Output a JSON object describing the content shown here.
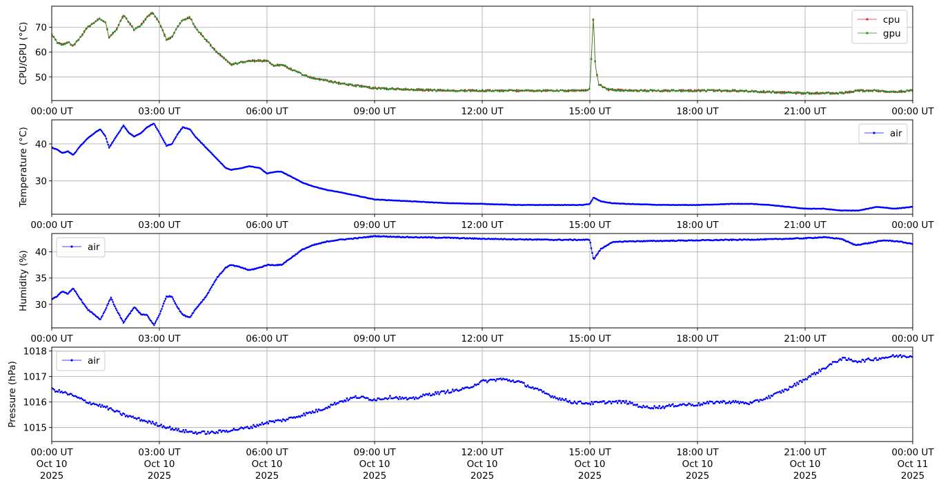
{
  "chart_data": [
    {
      "type": "line",
      "ylabel": "CPU/GPU (°C)",
      "ylim": [
        40.5,
        78.5
      ],
      "yticks": [
        50,
        60,
        70
      ],
      "xlim": [
        "2025-10-10 00:00",
        "2025-10-11 00:00"
      ],
      "x_tick_labels": [
        "00:00 UT",
        "03:00 UT",
        "06:00 UT",
        "09:00 UT",
        "12:00 UT",
        "15:00 UT",
        "18:00 UT",
        "21:00 UT",
        "00:00 UT"
      ],
      "grid": true,
      "legend_position": "top-right",
      "x_hours": [
        0,
        0.15,
        0.3,
        0.45,
        0.6,
        0.8,
        1.0,
        1.2,
        1.3,
        1.5,
        1.6,
        1.8,
        2.0,
        2.15,
        2.3,
        2.5,
        2.65,
        2.8,
        3.0,
        3.2,
        3.35,
        3.5,
        3.65,
        3.85,
        4.0,
        4.3,
        4.6,
        4.85,
        5.0,
        5.3,
        5.6,
        6.0,
        6.2,
        6.4,
        6.7,
        7.0,
        7.3,
        7.7,
        8.0,
        8.5,
        9.0,
        10.0,
        11.0,
        12.0,
        13.0,
        14.0,
        14.8,
        15.0,
        15.05,
        15.1,
        15.15,
        15.25,
        15.5,
        16.0,
        17.0,
        18.0,
        19.0,
        20.0,
        21.0,
        22.0,
        22.5,
        23.0,
        23.5,
        24.0
      ],
      "series": [
        {
          "name": "cpu",
          "color": "#d62728",
          "values": [
            67,
            64,
            63,
            64,
            62.5,
            66,
            70,
            72,
            73.5,
            72,
            66,
            69,
            75,
            72,
            69,
            71,
            74,
            76,
            72,
            65,
            66,
            70,
            73,
            74,
            70,
            65,
            60,
            57,
            55,
            56,
            56.5,
            56.5,
            54.5,
            55,
            53,
            51,
            49.5,
            48.5,
            47.5,
            46.5,
            45.5,
            45,
            44.5,
            44.5,
            44.5,
            44.5,
            44.5,
            45,
            60,
            75,
            55,
            47,
            45,
            44.5,
            44.5,
            44.5,
            44.5,
            44,
            43.5,
            43.5,
            44.5,
            44.5,
            44,
            44.5
          ]
        },
        {
          "name": "gpu",
          "color": "#228b22",
          "values": [
            67,
            64,
            63,
            64,
            62.5,
            66,
            70,
            72,
            73.5,
            72,
            66,
            69,
            75,
            72,
            69,
            71,
            74,
            76,
            72,
            65,
            66,
            70,
            73,
            74,
            70,
            65,
            60,
            57,
            55,
            56,
            56.5,
            56.5,
            54.5,
            55,
            53,
            51,
            49.5,
            48.5,
            47.5,
            46.5,
            45.5,
            45,
            44.5,
            44.5,
            44.5,
            44.5,
            44.5,
            45,
            60,
            75,
            55,
            47,
            45,
            44.5,
            44.5,
            44.5,
            44.5,
            44,
            43.5,
            43.5,
            44.5,
            44.5,
            44,
            44.5
          ]
        }
      ]
    },
    {
      "type": "line",
      "ylabel": "Temperature (°C)",
      "ylim": [
        21,
        46.5
      ],
      "yticks": [
        30,
        40
      ],
      "xlim": [
        "2025-10-10 00:00",
        "2025-10-11 00:00"
      ],
      "x_tick_labels": [
        "00:00 UT",
        "03:00 UT",
        "06:00 UT",
        "09:00 UT",
        "12:00 UT",
        "15:00 UT",
        "18:00 UT",
        "21:00 UT",
        "00:00 UT"
      ],
      "grid": true,
      "legend_position": "top-right",
      "x_hours": [
        0,
        0.15,
        0.3,
        0.45,
        0.6,
        0.8,
        1.0,
        1.2,
        1.35,
        1.5,
        1.6,
        1.8,
        2.0,
        2.15,
        2.3,
        2.5,
        2.65,
        2.85,
        3.0,
        3.2,
        3.35,
        3.5,
        3.65,
        3.85,
        4.0,
        4.3,
        4.6,
        4.85,
        5.0,
        5.3,
        5.5,
        5.8,
        6.0,
        6.25,
        6.4,
        6.7,
        7.0,
        7.3,
        7.7,
        8.0,
        8.5,
        9.0,
        10.0,
        11.0,
        12.0,
        13.0,
        14.0,
        14.8,
        15.0,
        15.1,
        15.3,
        15.6,
        16.0,
        17.0,
        18.0,
        19.0,
        19.5,
        20.0,
        21.0,
        21.5,
        22.0,
        22.5,
        23.0,
        23.5,
        24.0
      ],
      "series": [
        {
          "name": "air",
          "color": "#0000ff",
          "values": [
            39,
            38.5,
            37.5,
            38,
            37,
            39.5,
            41.5,
            43,
            44,
            42,
            39,
            42,
            45,
            43,
            42,
            43,
            44.5,
            45.5,
            43,
            39.5,
            40,
            42.5,
            44.5,
            44,
            42,
            39,
            36,
            33.5,
            33,
            33.5,
            34,
            33.5,
            32,
            32.5,
            32.5,
            31,
            29.5,
            28.5,
            27.5,
            27,
            26,
            25,
            24.5,
            24,
            23.8,
            23.5,
            23.5,
            23.5,
            23.8,
            25.5,
            24.5,
            24,
            23.8,
            23.5,
            23.5,
            23.8,
            23.8,
            23.5,
            22.5,
            22.5,
            22,
            22,
            23,
            22.5,
            23
          ]
        }
      ]
    },
    {
      "type": "line",
      "ylabel": "Humidity (%)",
      "ylim": [
        25.5,
        43.5
      ],
      "yticks": [
        30,
        35,
        40
      ],
      "xlim": [
        "2025-10-10 00:00",
        "2025-10-11 00:00"
      ],
      "x_tick_labels": [
        "00:00 UT",
        "03:00 UT",
        "06:00 UT",
        "09:00 UT",
        "12:00 UT",
        "15:00 UT",
        "18:00 UT",
        "21:00 UT",
        "00:00 UT"
      ],
      "grid": true,
      "legend_position": "top-left",
      "x_hours": [
        0,
        0.15,
        0.3,
        0.45,
        0.6,
        0.8,
        1.0,
        1.2,
        1.35,
        1.5,
        1.65,
        1.8,
        2.0,
        2.15,
        2.3,
        2.5,
        2.65,
        2.85,
        3.0,
        3.2,
        3.35,
        3.5,
        3.65,
        3.85,
        4.0,
        4.3,
        4.6,
        4.85,
        5.0,
        5.3,
        5.5,
        5.8,
        6.0,
        6.25,
        6.4,
        6.7,
        7.0,
        7.3,
        7.7,
        8.0,
        8.5,
        9.0,
        10.0,
        11.0,
        12.0,
        13.0,
        14.0,
        14.8,
        15.0,
        15.1,
        15.3,
        15.6,
        16.0,
        17.0,
        18.0,
        19.0,
        20.0,
        21.0,
        21.5,
        22.0,
        22.4,
        22.8,
        23.2,
        23.6,
        24.0
      ],
      "series": [
        {
          "name": "air",
          "color": "#0000ff",
          "values": [
            31,
            31.5,
            32.5,
            32,
            33,
            31,
            29,
            28,
            27,
            29,
            31.3,
            29,
            26.5,
            28,
            29.5,
            28,
            28,
            26,
            28,
            31.5,
            31.5,
            29.5,
            28,
            27.5,
            29,
            31.5,
            35,
            37,
            37.5,
            37,
            36.5,
            37,
            37.5,
            37.5,
            37.5,
            39,
            40.5,
            41.3,
            42,
            42.3,
            42.6,
            43,
            42.8,
            42.7,
            42.5,
            42.4,
            42.3,
            42.3,
            42.3,
            38.5,
            40.5,
            41.8,
            42,
            42.1,
            42.2,
            42.3,
            42.4,
            42.6,
            42.8,
            42.5,
            41.3,
            41.7,
            42.2,
            42,
            41.5
          ]
        }
      ]
    },
    {
      "type": "scatter",
      "ylabel": "Pressure (hPa)",
      "ylim": [
        1014.45,
        1018.15
      ],
      "yticks": [
        1015,
        1016,
        1017,
        1018
      ],
      "xlim": [
        "2025-10-10 00:00",
        "2025-10-11 00:00"
      ],
      "x_tick_labels": [
        [
          "00:00 UT",
          "Oct 10",
          "2025"
        ],
        [
          "03:00 UT",
          "Oct 10",
          "2025"
        ],
        [
          "06:00 UT",
          "Oct 10",
          "2025"
        ],
        [
          "09:00 UT",
          "Oct 10",
          "2025"
        ],
        [
          "12:00 UT",
          "Oct 10",
          "2025"
        ],
        [
          "15:00 UT",
          "Oct 10",
          "2025"
        ],
        [
          "18:00 UT",
          "Oct 10",
          "2025"
        ],
        [
          "21:00 UT",
          "Oct 10",
          "2025"
        ],
        [
          "00:00 UT",
          "Oct 11",
          "2025"
        ]
      ],
      "grid": true,
      "legend_position": "top-left",
      "x_hours": [
        0,
        0.5,
        1.0,
        1.5,
        2.0,
        2.5,
        3.0,
        3.5,
        4.0,
        4.5,
        5.0,
        5.5,
        6.0,
        6.5,
        7.0,
        7.5,
        8.0,
        8.5,
        9.0,
        9.5,
        10.0,
        10.5,
        11.0,
        11.5,
        12.0,
        12.5,
        13.0,
        13.5,
        14.0,
        14.5,
        15.0,
        15.5,
        16.0,
        16.5,
        17.0,
        17.5,
        18.0,
        18.5,
        19.0,
        19.5,
        20.0,
        20.5,
        21.0,
        21.5,
        22.0,
        22.5,
        23.0,
        23.5,
        24.0
      ],
      "series": [
        {
          "name": "air",
          "color": "#0000ff",
          "values": [
            1016.5,
            1016.3,
            1016,
            1015.8,
            1015.5,
            1015.3,
            1015.1,
            1014.9,
            1014.8,
            1014.8,
            1014.9,
            1015,
            1015.2,
            1015.3,
            1015.5,
            1015.7,
            1016,
            1016.2,
            1016.1,
            1016.2,
            1016.1,
            1016.3,
            1016.4,
            1016.5,
            1016.8,
            1016.9,
            1016.8,
            1016.5,
            1016.2,
            1016,
            1015.95,
            1016,
            1016,
            1015.8,
            1015.8,
            1015.9,
            1015.9,
            1016,
            1016,
            1015.95,
            1016.2,
            1016.5,
            1016.9,
            1017.3,
            1017.7,
            1017.6,
            1017.7,
            1017.8,
            1017.8
          ]
        }
      ]
    }
  ]
}
